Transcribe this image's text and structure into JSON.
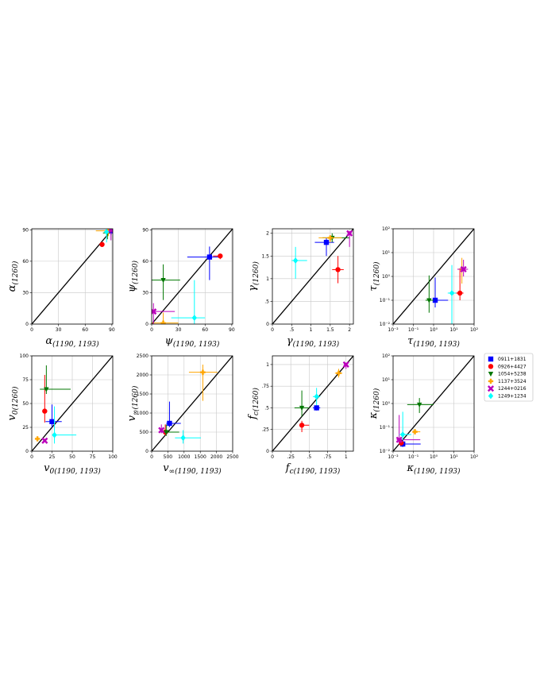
{
  "legend": {
    "entries": [
      {
        "label": "0911+1831",
        "color": "#0000ff",
        "marker": "square"
      },
      {
        "label": "0926+4427",
        "color": "#ff0000",
        "marker": "circle"
      },
      {
        "label": "1054+5238",
        "color": "#007700",
        "marker": "triangle-down"
      },
      {
        "label": "1137+3524",
        "color": "#ffa500",
        "marker": "plus"
      },
      {
        "label": "1244+0216",
        "color": "#bb00bb",
        "marker": "x"
      },
      {
        "label": "1249+1234",
        "color": "#00ffff",
        "marker": "diamond"
      }
    ]
  },
  "chart_data": [
    {
      "type": "scatter",
      "id": "alpha",
      "ylabel_sym": "α",
      "ylabel_sub": "(1260)",
      "xlabel_sym": "α",
      "xlabel_sub": "(1190, 1193)",
      "scale": "linear",
      "xlim": [
        0,
        91
      ],
      "ylim": [
        0,
        91
      ],
      "xticks": [
        0,
        30,
        60,
        90
      ],
      "xtick_labels": [
        "0",
        "30",
        "60",
        "90"
      ],
      "yticks": [
        0,
        30,
        60,
        90
      ],
      "ytick_labels": [
        "0",
        "30",
        "60",
        "90"
      ],
      "grid": true,
      "diagonal": true,
      "points": [
        {
          "series": 0,
          "x": 89,
          "y": 89,
          "xerr": [
            3,
            1
          ],
          "yerr": [
            4,
            1
          ]
        },
        {
          "series": 1,
          "x": 79,
          "y": 76,
          "xerr": [
            1,
            1
          ],
          "yerr": [
            1,
            1
          ]
        },
        {
          "series": 2,
          "x": 85,
          "y": 87,
          "xerr": [
            5,
            3
          ],
          "yerr": [
            6,
            2
          ]
        },
        {
          "series": 3,
          "x": 86,
          "y": 89,
          "xerr": [
            14,
            3
          ],
          "yerr": [
            5,
            1
          ]
        },
        {
          "series": 4,
          "x": 89,
          "y": 90,
          "xerr": [
            2,
            1
          ],
          "yerr": [
            10,
            0
          ]
        },
        {
          "series": 5,
          "x": 84,
          "y": 88,
          "xerr": [
            3,
            3
          ],
          "yerr": [
            10,
            2
          ]
        }
      ]
    },
    {
      "type": "scatter",
      "id": "psi",
      "ylabel_sym": "ψ",
      "ylabel_sub": "(1260)",
      "xlabel_sym": "ψ",
      "xlabel_sub": "(1190, 1193)",
      "scale": "linear",
      "xlim": [
        0,
        91
      ],
      "ylim": [
        0,
        91
      ],
      "xticks": [
        0,
        30,
        60,
        90
      ],
      "xtick_labels": [
        "0",
        "30",
        "60",
        "90"
      ],
      "yticks": [
        0,
        30,
        60,
        90
      ],
      "ytick_labels": [
        "0",
        "30",
        "60",
        "90"
      ],
      "grid": true,
      "diagonal": true,
      "points": [
        {
          "series": 0,
          "x": 65,
          "y": 64,
          "xerr": [
            25,
            10
          ],
          "yerr": [
            22,
            10
          ]
        },
        {
          "series": 1,
          "x": 77,
          "y": 65,
          "xerr": [
            8,
            2
          ],
          "yerr": [
            3,
            2
          ]
        },
        {
          "series": 2,
          "x": 13,
          "y": 42,
          "xerr": [
            13,
            19
          ],
          "yerr": [
            19,
            15
          ]
        },
        {
          "series": 3,
          "x": 13,
          "y": 1,
          "xerr": [
            13,
            17
          ],
          "yerr": [
            1,
            10
          ]
        },
        {
          "series": 4,
          "x": 2,
          "y": 12,
          "xerr": [
            2,
            24
          ],
          "yerr": [
            12,
            8
          ]
        },
        {
          "series": 5,
          "x": 48,
          "y": 6,
          "xerr": [
            26,
            12
          ],
          "yerr": [
            6,
            36
          ]
        }
      ]
    },
    {
      "type": "scatter",
      "id": "gamma",
      "ylabel_sym": "γ",
      "ylabel_sub": "(1260)",
      "xlabel_sym": "γ",
      "xlabel_sub": "(1190, 1193)",
      "scale": "linear",
      "xlim": [
        0,
        2.1
      ],
      "ylim": [
        0,
        2.1
      ],
      "xticks": [
        0,
        0.5,
        1,
        1.5,
        2
      ],
      "xtick_labels": [
        "0",
        ".5",
        "1",
        "1.5",
        "2"
      ],
      "yticks": [
        0,
        0.5,
        1,
        1.5,
        2
      ],
      "ytick_labels": [
        "0",
        ".5",
        "1",
        "1.5",
        "2"
      ],
      "grid": true,
      "diagonal": true,
      "points": [
        {
          "series": 0,
          "x": 1.4,
          "y": 1.8,
          "xerr": [
            0.3,
            0.2
          ],
          "yerr": [
            0.3,
            0.1
          ]
        },
        {
          "series": 1,
          "x": 1.7,
          "y": 1.2,
          "xerr": [
            0.15,
            0.15
          ],
          "yerr": [
            0.3,
            0.3
          ]
        },
        {
          "series": 2,
          "x": 1.55,
          "y": 1.9,
          "xerr": [
            0.25,
            0.45
          ],
          "yerr": [
            0.1,
            0.1
          ]
        },
        {
          "series": 3,
          "x": 1.5,
          "y": 1.9,
          "xerr": [
            0.3,
            0.3
          ],
          "yerr": [
            0.1,
            0.05
          ]
        },
        {
          "series": 4,
          "x": 2.0,
          "y": 2.0,
          "xerr": [
            0.05,
            0.05
          ],
          "yerr": [
            0.3,
            0.05
          ]
        },
        {
          "series": 5,
          "x": 0.6,
          "y": 1.4,
          "xerr": [
            0.1,
            0.3
          ],
          "yerr": [
            0.4,
            0.3
          ]
        }
      ]
    },
    {
      "type": "scatter",
      "id": "tau",
      "ylabel_sym": "τ",
      "ylabel_sub": "(1260)",
      "xlabel_sym": "τ",
      "xlabel_sub": "(1190, 1193)",
      "scale": "log",
      "xlim": [
        0.01,
        100
      ],
      "ylim": [
        0.01,
        100
      ],
      "xticks": [
        0.01,
        0.1,
        1,
        10,
        100
      ],
      "xtick_labels": [
        "10⁻²",
        "10⁻¹",
        "10⁰",
        "10¹",
        "10²"
      ],
      "yticks": [
        0.01,
        0.1,
        1,
        10,
        100
      ],
      "ytick_labels": [
        "10⁻²",
        "10⁻¹",
        "10⁰",
        "10¹",
        "10²"
      ],
      "grid": true,
      "diagonal": true,
      "points": [
        {
          "series": 0,
          "x": 1.2,
          "y": 0.1,
          "xerr": [
            0.7,
            4
          ],
          "yerr": [
            0.05,
            0.8
          ]
        },
        {
          "series": 1,
          "x": 20,
          "y": 0.2,
          "xerr": [
            8,
            10
          ],
          "yerr": [
            0.1,
            2
          ]
        },
        {
          "series": 2,
          "x": 0.6,
          "y": 0.1,
          "xerr": [
            0.2,
            0.4
          ],
          "yerr": [
            0.07,
            1
          ]
        },
        {
          "series": 3,
          "x": 25,
          "y": 2,
          "xerr": [
            10,
            15
          ],
          "yerr": [
            1.5,
            4
          ]
        },
        {
          "series": 4,
          "x": 30,
          "y": 2,
          "xerr": [
            15,
            20
          ],
          "yerr": [
            1,
            3
          ]
        },
        {
          "series": 5,
          "x": 8,
          "y": 0.2,
          "xerr": [
            3,
            5
          ],
          "yerr": [
            0.19,
            2.8
          ]
        }
      ]
    },
    {
      "type": "scatter",
      "id": "v0",
      "ylabel_sym": "v",
      "ylabel_sub": "0(1260)",
      "xlabel_sym": "v",
      "xlabel_sub": "0(1190, 1193)",
      "scale": "linear",
      "xlim": [
        0,
        100
      ],
      "ylim": [
        0,
        100
      ],
      "xticks": [
        0,
        25,
        50,
        75,
        100
      ],
      "xtick_labels": [
        "0",
        "25",
        "50",
        "75",
        "100"
      ],
      "yticks": [
        0,
        25,
        50,
        75,
        100
      ],
      "ytick_labels": [
        "0",
        "25",
        "50",
        "75",
        "100"
      ],
      "grid": true,
      "diagonal": true,
      "points": [
        {
          "series": 0,
          "x": 25,
          "y": 31,
          "xerr": [
            8,
            12
          ],
          "yerr": [
            6,
            18
          ]
        },
        {
          "series": 1,
          "x": 16,
          "y": 42,
          "xerr": [
            2,
            2
          ],
          "yerr": [
            12,
            38
          ]
        },
        {
          "series": 2,
          "x": 18,
          "y": 65,
          "xerr": [
            8,
            30
          ],
          "yerr": [
            5,
            25
          ]
        },
        {
          "series": 3,
          "x": 7,
          "y": 13,
          "xerr": [
            1,
            1
          ],
          "yerr": [
            2,
            2
          ]
        },
        {
          "series": 4,
          "x": 16,
          "y": 11,
          "xerr": [
            1,
            1
          ],
          "yerr": [
            1,
            2
          ]
        },
        {
          "series": 5,
          "x": 28,
          "y": 17,
          "xerr": [
            3,
            27
          ],
          "yerr": [
            9,
            30
          ]
        }
      ]
    },
    {
      "type": "scatter",
      "id": "vinf",
      "ylabel_sym": "v",
      "ylabel_sub": "∞(1260)",
      "xlabel_sym": "v",
      "xlabel_sub": "∞(1190, 1193)",
      "scale": "linear",
      "xlim": [
        0,
        2500
      ],
      "ylim": [
        0,
        2500
      ],
      "xticks": [
        0,
        500,
        1000,
        1500,
        2000,
        2500
      ],
      "xtick_labels": [
        "0",
        "500",
        "1000",
        "1500",
        "2000",
        "2500"
      ],
      "yticks": [
        0,
        500,
        1000,
        1500,
        2000,
        2500
      ],
      "ytick_labels": [
        "0",
        "500",
        "1000",
        "1500",
        "2000",
        "2500"
      ],
      "grid": true,
      "diagonal": true,
      "points": [
        {
          "series": 0,
          "x": 550,
          "y": 730,
          "xerr": [
            100,
            350
          ],
          "yerr": [
            100,
            570
          ]
        },
        {
          "series": 1,
          "x": 420,
          "y": 500,
          "xerr": [
            80,
            80
          ],
          "yerr": [
            80,
            200
          ]
        },
        {
          "series": 2,
          "x": 450,
          "y": 500,
          "xerr": [
            150,
            400
          ],
          "yerr": [
            100,
            200
          ]
        },
        {
          "series": 3,
          "x": 1580,
          "y": 2070,
          "xerr": [
            430,
            450
          ],
          "yerr": [
            750,
            200
          ]
        },
        {
          "series": 4,
          "x": 300,
          "y": 550,
          "xerr": [
            40,
            40
          ],
          "yerr": [
            80,
            150
          ]
        },
        {
          "series": 5,
          "x": 970,
          "y": 350,
          "xerr": [
            250,
            550
          ],
          "yerr": [
            150,
            200
          ]
        }
      ]
    },
    {
      "type": "scatter",
      "id": "fc",
      "ylabel_sym": "f",
      "ylabel_sub": "c(1260)",
      "xlabel_sym": "f",
      "xlabel_sub": "c(1190, 1193)",
      "scale": "linear",
      "xlim": [
        0,
        1.1
      ],
      "ylim": [
        0,
        1.1
      ],
      "xticks": [
        0,
        0.25,
        0.5,
        0.75,
        1
      ],
      "xtick_labels": [
        "0",
        ".25",
        ".5",
        ".75",
        "1"
      ],
      "yticks": [
        0,
        0.25,
        0.5,
        0.75,
        1
      ],
      "ytick_labels": [
        "0",
        ".25",
        ".5",
        ".75",
        "1"
      ],
      "grid": true,
      "diagonal": true,
      "points": [
        {
          "series": 0,
          "x": 0.6,
          "y": 0.5,
          "xerr": [
            0.05,
            0.05
          ],
          "yerr": [
            0.03,
            0.03
          ]
        },
        {
          "series": 1,
          "x": 0.4,
          "y": 0.3,
          "xerr": [
            0.03,
            0.1
          ],
          "yerr": [
            0.08,
            0.05
          ]
        },
        {
          "series": 2,
          "x": 0.4,
          "y": 0.5,
          "xerr": [
            0.1,
            0.1
          ],
          "yerr": [
            0.1,
            0.2
          ]
        },
        {
          "series": 3,
          "x": 0.9,
          "y": 0.9,
          "xerr": [
            0.05,
            0.05
          ],
          "yerr": [
            0.05,
            0.05
          ]
        },
        {
          "series": 4,
          "x": 1.0,
          "y": 1.0,
          "xerr": [
            0.03,
            0.02
          ],
          "yerr": [
            0.05,
            0.02
          ]
        },
        {
          "series": 5,
          "x": 0.6,
          "y": 0.63,
          "xerr": [
            0.05,
            0.05
          ],
          "yerr": [
            0.1,
            0.1
          ]
        }
      ]
    },
    {
      "type": "scatter",
      "id": "kappa",
      "ylabel_sym": "κ",
      "ylabel_sub": "(1260)",
      "xlabel_sym": "κ",
      "xlabel_sub": "(1190, 1193)",
      "scale": "log",
      "xlim": [
        0.01,
        100
      ],
      "ylim": [
        0.01,
        100
      ],
      "xticks": [
        0.01,
        0.1,
        1,
        10,
        100
      ],
      "xtick_labels": [
        "10⁻²",
        "10⁻¹",
        "10⁰",
        "10¹",
        "10²"
      ],
      "yticks": [
        0.01,
        0.1,
        1,
        10,
        100
      ],
      "ytick_labels": [
        "10⁻²",
        "10⁻¹",
        "10⁰",
        "10¹",
        "10²"
      ],
      "grid": true,
      "diagonal": true,
      "points": [
        {
          "series": 0,
          "x": 0.03,
          "y": 0.02,
          "xerr": [
            0.01,
            0.2
          ],
          "yerr": [
            0.005,
            0.01
          ]
        },
        {
          "series": 1,
          "x": 0.025,
          "y": 0.022,
          "xerr": [
            0.005,
            0.01
          ],
          "yerr": [
            0.005,
            0.01
          ]
        },
        {
          "series": 2,
          "x": 0.2,
          "y": 0.9,
          "xerr": [
            0.15,
            0.8
          ],
          "yerr": [
            0.5,
            0.8
          ]
        },
        {
          "series": 3,
          "x": 0.12,
          "y": 0.065,
          "xerr": [
            0.02,
            0.1
          ],
          "yerr": [
            0.01,
            0.02
          ]
        },
        {
          "series": 4,
          "x": 0.02,
          "y": 0.03,
          "xerr": [
            0.005,
            0.2
          ],
          "yerr": [
            0.01,
            0.3
          ]
        },
        {
          "series": 5,
          "x": 0.03,
          "y": 0.05,
          "xerr": [
            0.01,
            0.05
          ],
          "yerr": [
            0.02,
            0.4
          ]
        }
      ]
    }
  ]
}
